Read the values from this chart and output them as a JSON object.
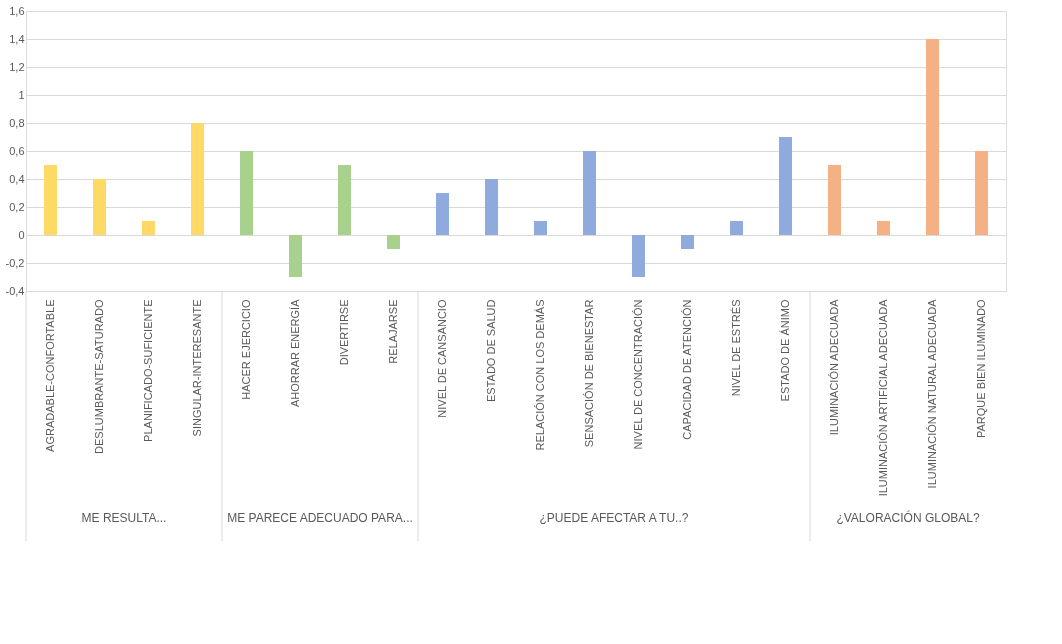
{
  "chart_data": {
    "type": "bar",
    "categories": [
      "AGRADABLE-CONFORTABLE",
      "DESLUMBRANTE-SATURADO",
      "PLANIFICADO-SUFICIENTE",
      "SINGULAR-INTERESANTE",
      "HACER EJERCICIO",
      "AHORRAR ENERGÍA",
      "DIVERTIRSE",
      "RELAJARSE",
      "NIVEL DE CANSANCIO",
      "ESTADO DE SALUD",
      "RELACIÓN CON LOS DEMÁS",
      "SENSACIÓN DE BIENESTAR",
      "NIVEL DE CONCENTRACIÓN",
      "CAPACIDAD DE ATENCIÓN",
      "NIVEL DE ESTRÉS",
      "ESTADO DE ÁNIMO",
      "ILUMINACIÓN ADECUADA",
      "ILUMINACIÓN ARTIFICIAL ADECUADA",
      "ILUMINACIÓN NATURAL ADECUADA",
      "PARQUE BIEN ILUMINADO"
    ],
    "series": [
      {
        "color": "#ffd966",
        "values": [
          0.5,
          0.4,
          0.1,
          0.8,
          null,
          null,
          null,
          null,
          null,
          null,
          null,
          null,
          null,
          null,
          null,
          null,
          null,
          null,
          null,
          null
        ]
      },
      {
        "color": "#a9d18e",
        "values": [
          null,
          null,
          null,
          null,
          0.6,
          -0.3,
          0.5,
          -0.1,
          null,
          null,
          null,
          null,
          null,
          null,
          null,
          null,
          null,
          null,
          null,
          null
        ]
      },
      {
        "color": "#8faadc",
        "values": [
          null,
          null,
          null,
          null,
          null,
          null,
          null,
          null,
          0.3,
          0.4,
          0.1,
          0.6,
          -0.3,
          -0.1,
          0.1,
          0.7,
          null,
          null,
          null,
          null
        ]
      },
      {
        "color": "#f4b183",
        "values": [
          null,
          null,
          null,
          null,
          null,
          null,
          null,
          null,
          null,
          null,
          null,
          null,
          null,
          null,
          null,
          null,
          0.5,
          0.1,
          1.4,
          0.6
        ]
      }
    ],
    "ylim": [
      -0.4,
      1.6
    ],
    "yticks": [
      {
        "value": -0.4,
        "label": "-0,4"
      },
      {
        "value": -0.2,
        "label": "-0,2"
      },
      {
        "value": 0,
        "label": "0"
      },
      {
        "value": 0.2,
        "label": "0,2"
      },
      {
        "value": 0.4,
        "label": "0,4"
      },
      {
        "value": 0.6,
        "label": "0,6"
      },
      {
        "value": 0.8,
        "label": "0,8"
      },
      {
        "value": 1,
        "label": "1"
      },
      {
        "value": 1.2,
        "label": "1,2"
      },
      {
        "value": 1.4,
        "label": "1,4"
      },
      {
        "value": 1.6,
        "label": "1,6"
      }
    ],
    "annotations": [
      "ME RESULTA...",
      "ME PARECE ADECUADO PARA...",
      "¿PUEDE AFECTAR A TU..?",
      "¿VALORACIÓN GLOBAL?"
    ],
    "grid": "y",
    "legend": false
  }
}
